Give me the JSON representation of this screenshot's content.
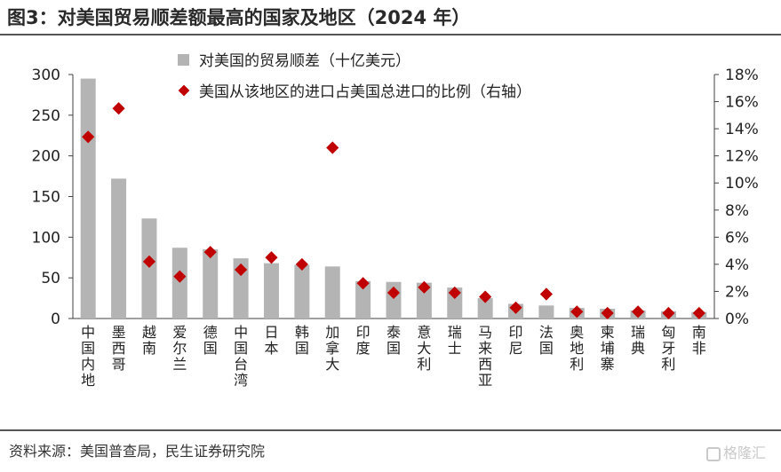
{
  "header": {
    "title": "图3：对美国贸易顺差额最高的国家及地区（2024 年）"
  },
  "footer": {
    "source": "资料来源：美国普查局，民生证券研究院",
    "watermark": "格隆汇"
  },
  "colors": {
    "bar": "#b4b4b4",
    "marker": "#c00000",
    "axis": "#404040"
  },
  "chart_data": {
    "type": "bar",
    "title": "",
    "categories": [
      "中国内地",
      "墨西哥",
      "越南",
      "爱尔兰",
      "德国",
      "中国台湾",
      "日本",
      "韩国",
      "加拿大",
      "印度",
      "泰国",
      "意大利",
      "瑞士",
      "马来西亚",
      "印尼",
      "法国",
      "奥地利",
      "柬埔寨",
      "瑞典",
      "匈牙利",
      "南非"
    ],
    "y_left": {
      "range": [
        0,
        300
      ],
      "ticks": [
        "0",
        "50",
        "100",
        "150",
        "200",
        "250",
        "300"
      ]
    },
    "y_right": {
      "range": [
        0,
        18
      ],
      "ticks": [
        "0%",
        "2%",
        "4%",
        "6%",
        "8%",
        "10%",
        "12%",
        "14%",
        "16%",
        "18%"
      ]
    },
    "legend_position": "top",
    "series": [
      {
        "name": "对美国的贸易顺差（十亿美元）",
        "type": "bar",
        "axis": "left",
        "values": [
          295,
          172,
          123,
          87,
          85,
          74,
          68,
          66,
          64,
          46,
          45,
          44,
          38,
          25,
          18,
          16,
          13,
          12,
          10,
          9,
          8
        ]
      },
      {
        "name": "美国从该地区的进口占美国总进口的比例（右轴）",
        "type": "scatter",
        "axis": "right",
        "values": [
          13.4,
          15.5,
          4.2,
          3.1,
          4.9,
          3.6,
          4.5,
          4.0,
          12.6,
          2.6,
          1.9,
          2.3,
          1.9,
          1.6,
          0.8,
          1.8,
          0.5,
          0.4,
          0.5,
          0.4,
          0.4
        ]
      }
    ]
  }
}
